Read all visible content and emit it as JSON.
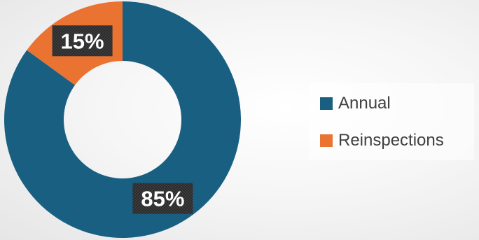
{
  "chart_data": {
    "type": "pie",
    "variant": "donut",
    "categories": [
      "Annual",
      "Reinspections"
    ],
    "values": [
      85,
      15
    ],
    "data_labels": [
      "85%",
      "15%"
    ],
    "colors": [
      "#195f82",
      "#ea7331"
    ],
    "title": "",
    "legend_placement": "right"
  }
}
